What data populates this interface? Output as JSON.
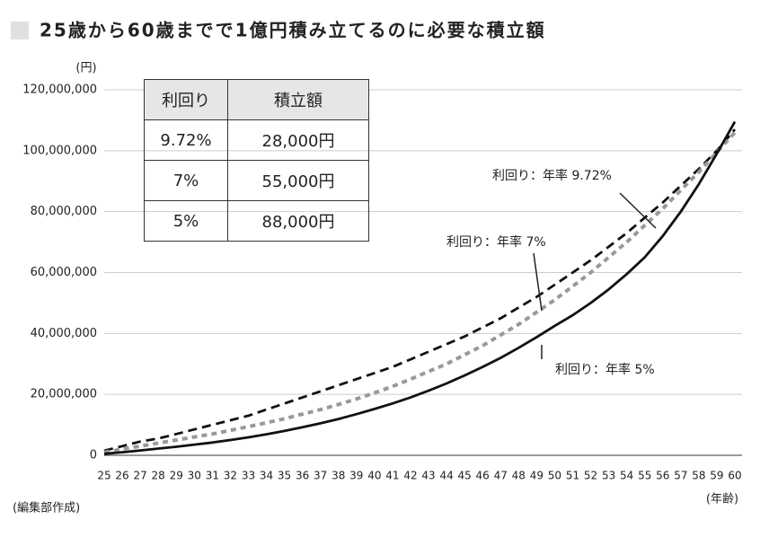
{
  "chart_data": {
    "type": "line",
    "title": "25歳から60歳までで1億円積み立てるのに必要な積立額",
    "y_label": "(円)",
    "x_label": "(年齢)",
    "source": "(編集部作成)",
    "x": [
      25,
      26,
      27,
      28,
      29,
      30,
      31,
      32,
      33,
      34,
      35,
      36,
      37,
      38,
      39,
      40,
      41,
      42,
      43,
      44,
      45,
      46,
      47,
      48,
      49,
      50,
      51,
      52,
      53,
      54,
      55,
      56,
      57,
      58,
      59,
      60
    ],
    "series": [
      {
        "name": "利回り：年率 9.72%",
        "color": "#111111",
        "style": "dashed",
        "values": [
          1500000,
          3000000,
          4500000,
          5500000,
          7000000,
          8500000,
          10000000,
          11500000,
          13000000,
          15000000,
          17000000,
          19000000,
          21000000,
          23000000,
          25000000,
          27000000,
          29000000,
          31500000,
          34000000,
          36500000,
          39000000,
          42000000,
          45000000,
          48500000,
          52000000,
          56000000,
          60000000,
          64000000,
          68500000,
          73000000,
          78000000,
          83000000,
          88500000,
          94000000,
          100000000,
          107000000
        ]
      },
      {
        "name": "利回り：年率 7%",
        "color": "#999999",
        "style": "dotted",
        "values": [
          1000000,
          2000000,
          3000000,
          4000000,
          5000000,
          6000000,
          7000000,
          8200000,
          9400000,
          10700000,
          12000000,
          13500000,
          15000000,
          16700000,
          18500000,
          20500000,
          22600000,
          25000000,
          27500000,
          30000000,
          33000000,
          36000000,
          39500000,
          43000000,
          47000000,
          51000000,
          55500000,
          60000000,
          65000000,
          70000000,
          75500000,
          81000000,
          87000000,
          93000000,
          99500000,
          106000000
        ]
      },
      {
        "name": "利回り：年率 5%",
        "color": "#111111",
        "style": "solid",
        "values": [
          500000,
          1000000,
          1600000,
          2200000,
          2800000,
          3500000,
          4200000,
          5000000,
          5900000,
          6900000,
          8000000,
          9200000,
          10500000,
          11900000,
          13500000,
          15200000,
          17000000,
          19000000,
          21200000,
          23600000,
          26200000,
          29000000,
          32000000,
          35300000,
          38800000,
          42500000,
          46000000,
          50000000,
          54500000,
          59500000,
          65000000,
          72000000,
          80000000,
          89000000,
          99000000,
          109500000
        ]
      }
    ],
    "xlim": [
      25,
      60
    ],
    "xticks": [
      25,
      26,
      27,
      28,
      29,
      30,
      31,
      32,
      33,
      34,
      35,
      36,
      37,
      38,
      39,
      40,
      41,
      42,
      43,
      44,
      45,
      46,
      47,
      48,
      49,
      50,
      51,
      52,
      53,
      54,
      55,
      56,
      57,
      58,
      59,
      60
    ],
    "ylim": [
      0,
      120000000
    ],
    "yticks": [
      0,
      {
        "value": 20000000,
        "label": "20,000,000"
      },
      {
        "value": 40000000,
        "label": "40,000,000"
      },
      {
        "value": 60000000,
        "label": "60,000,000"
      },
      {
        "value": 80000000,
        "label": "80,000,000"
      },
      {
        "value": 100000000,
        "label": "100,000,000"
      },
      {
        "value": 120000000,
        "label": "120,000,000"
      }
    ],
    "grid": true
  },
  "table": {
    "header": [
      "利回り",
      "積立額"
    ],
    "rows": [
      [
        "9.72%",
        "28,000円"
      ],
      [
        "7%",
        "55,000円"
      ],
      [
        "5%",
        "88,000円"
      ]
    ]
  }
}
